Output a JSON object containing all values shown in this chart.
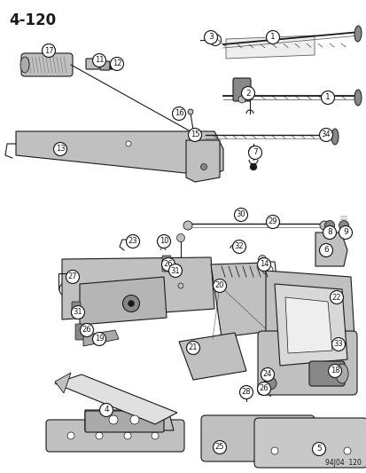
{
  "title": "4-120",
  "footer": "94J04  120",
  "bg_color": "#ffffff",
  "fg_color": "#1a1a1a",
  "label_fontsize": 6.5,
  "title_fontsize": 12,
  "labels": [
    [
      "17",
      55,
      57
    ],
    [
      "11",
      112,
      68
    ],
    [
      "12",
      132,
      72
    ],
    [
      "3",
      238,
      42
    ],
    [
      "1",
      308,
      42
    ],
    [
      "1",
      370,
      110
    ],
    [
      "2",
      280,
      105
    ],
    [
      "34",
      368,
      152
    ],
    [
      "16",
      202,
      128
    ],
    [
      "15",
      220,
      152
    ],
    [
      "13",
      68,
      168
    ],
    [
      "7",
      288,
      172
    ],
    [
      "29",
      308,
      250
    ],
    [
      "30",
      272,
      242
    ],
    [
      "32",
      270,
      278
    ],
    [
      "6",
      368,
      282
    ],
    [
      "8",
      372,
      262
    ],
    [
      "9",
      390,
      262
    ],
    [
      "23",
      150,
      272
    ],
    [
      "10",
      185,
      272
    ],
    [
      "26",
      190,
      298
    ],
    [
      "27",
      82,
      312
    ],
    [
      "31",
      88,
      352
    ],
    [
      "31",
      198,
      305
    ],
    [
      "26",
      98,
      372
    ],
    [
      "19",
      112,
      382
    ],
    [
      "14",
      298,
      298
    ],
    [
      "20",
      248,
      322
    ],
    [
      "21",
      218,
      392
    ],
    [
      "22",
      380,
      335
    ],
    [
      "33",
      382,
      388
    ],
    [
      "24",
      302,
      422
    ],
    [
      "26",
      298,
      438
    ],
    [
      "28",
      278,
      442
    ],
    [
      "18",
      378,
      418
    ],
    [
      "4",
      120,
      462
    ],
    [
      "25",
      248,
      504
    ],
    [
      "5",
      360,
      506
    ]
  ]
}
